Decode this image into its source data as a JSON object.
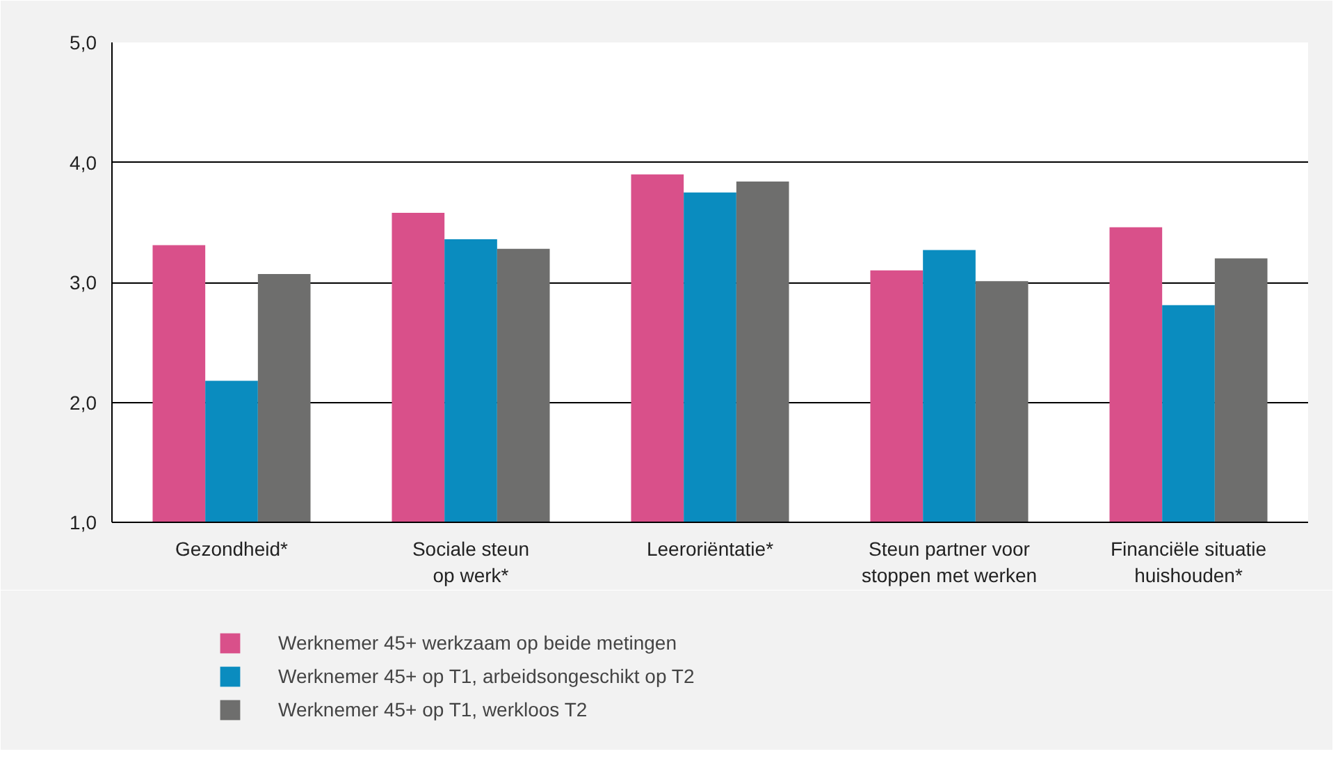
{
  "chart_data": {
    "type": "bar",
    "categories": [
      "Gezondheid*",
      "Sociale steun\nop werk*",
      "Leeroriëntatie*",
      "Steun partner voor\nstoppen met werken",
      "Financiële situatie\nhuishouden*"
    ],
    "series": [
      {
        "name": "Werknemer 45+ werkzaam op beide metingen",
        "color": "#d9508a",
        "values": [
          3.31,
          3.58,
          3.9,
          3.1,
          3.46
        ]
      },
      {
        "name": "Werknemer 45+ op T1, arbeidsongeschikt op T2",
        "color": "#0a8cbf",
        "values": [
          2.18,
          3.36,
          3.75,
          3.27,
          2.81
        ]
      },
      {
        "name": "Werknemer 45+ op T1, werkloos T2",
        "color": "#6e6e6d",
        "values": [
          3.07,
          3.28,
          3.84,
          3.01,
          3.2
        ]
      }
    ],
    "ylim": [
      1,
      5
    ],
    "yticks": [
      {
        "value": 1,
        "label": "1,0"
      },
      {
        "value": 2,
        "label": "2,0"
      },
      {
        "value": 3,
        "label": "3,0"
      },
      {
        "value": 4,
        "label": "4,0"
      },
      {
        "value": 5,
        "label": "5,0"
      }
    ],
    "grid": "y",
    "legend": "bottom"
  }
}
